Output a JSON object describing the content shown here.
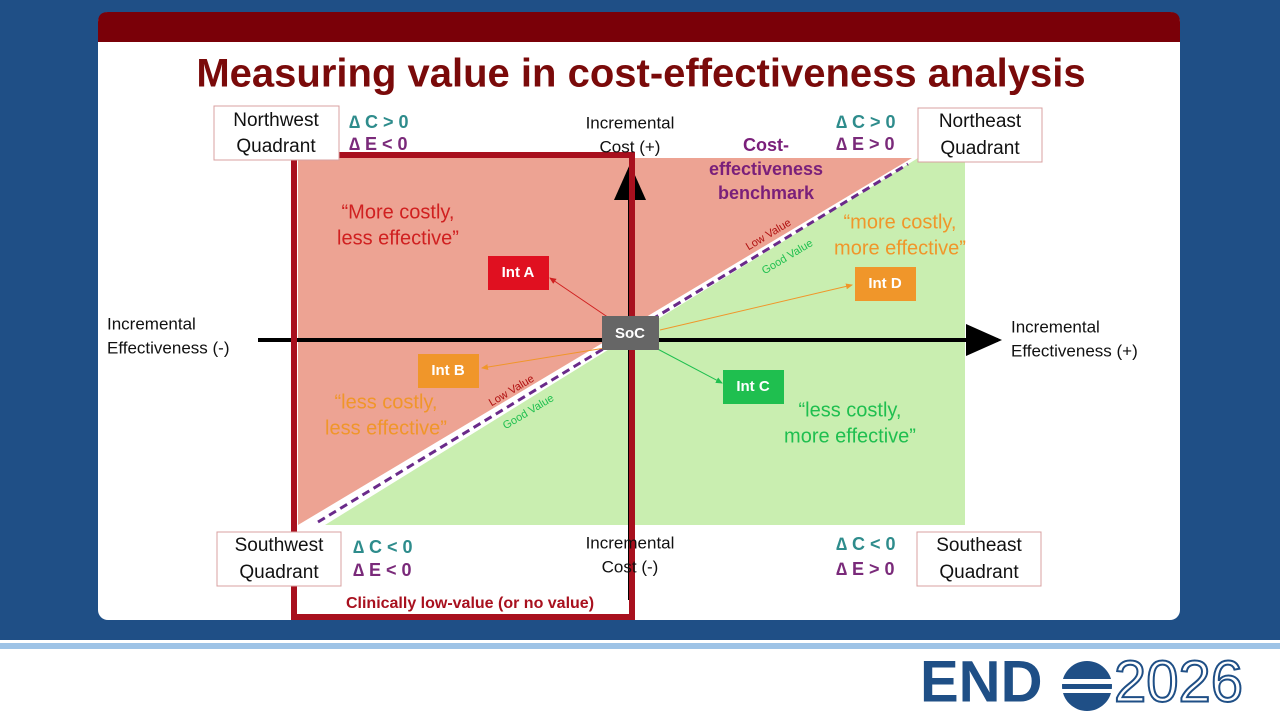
{
  "title": "Measuring value in cost-effectiveness analysis",
  "quadrants": {
    "northwest": {
      "lines": [
        "Northwest",
        "Quadrant"
      ],
      "dc": "∆ C > 0",
      "de": "∆ E < 0",
      "quote": [
        "“More costly,",
        "less effective”"
      ]
    },
    "northeast": {
      "lines": [
        "Northeast",
        "Quadrant"
      ],
      "dc": "∆ C > 0",
      "de": "∆ E > 0",
      "quote": [
        "“more costly,",
        "more effective”"
      ]
    },
    "southwest": {
      "lines": [
        "Southwest",
        "Quadrant"
      ],
      "dc": "∆ C < 0",
      "de": "∆ E < 0",
      "quote": [
        "“less costly,",
        "less effective”"
      ]
    },
    "southeast": {
      "lines": [
        "Southeast",
        "Quadrant"
      ],
      "dc": "∆ C < 0",
      "de": "∆ E > 0",
      "quote": [
        "“less costly,",
        "more effective”"
      ]
    }
  },
  "axes": {
    "cost_plus": [
      "Incremental",
      "Cost (+)"
    ],
    "cost_minus": [
      "Incremental",
      "Cost (-)"
    ],
    "eff_minus": [
      "Incremental",
      "Effectiveness (-)"
    ],
    "eff_plus": [
      "Incremental",
      "Effectiveness (+)"
    ]
  },
  "benchmark": [
    "Cost-",
    "effectiveness",
    "benchmark"
  ],
  "value_labels": {
    "low": "Low Value",
    "good": "Good Value"
  },
  "nodes": {
    "soc": "SoC",
    "a": "Int A",
    "b": "Int B",
    "c": "Int C",
    "d": "Int D"
  },
  "low_value_region": "Clinically low-value (or no value)",
  "logo": {
    "brand": "END",
    "year": "2026"
  }
}
